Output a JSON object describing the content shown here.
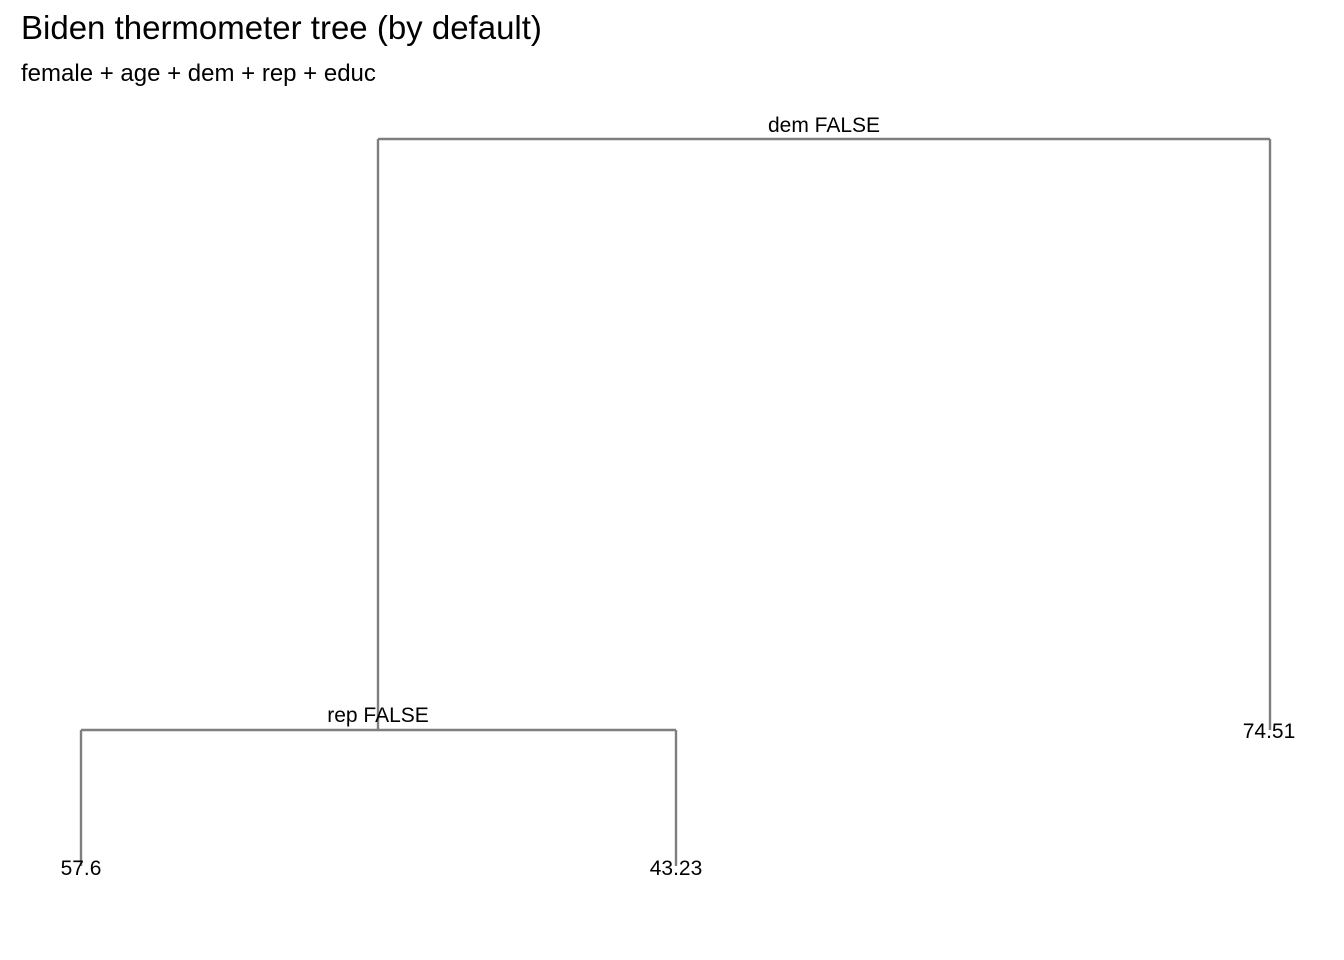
{
  "title": "Biden thermometer tree (by default)",
  "subtitle": "female + age + dem + rep + educ",
  "tree": {
    "root": {
      "split_label": "dem FALSE",
      "left": {
        "split_label": "rep FALSE",
        "left": {
          "leaf_value": "57.6"
        },
        "right": {
          "leaf_value": "43.23"
        }
      },
      "right": {
        "leaf_value": "74.51"
      }
    }
  },
  "colors": {
    "branch": "#7f7f7f",
    "text": "#000000",
    "background": "#ffffff"
  }
}
